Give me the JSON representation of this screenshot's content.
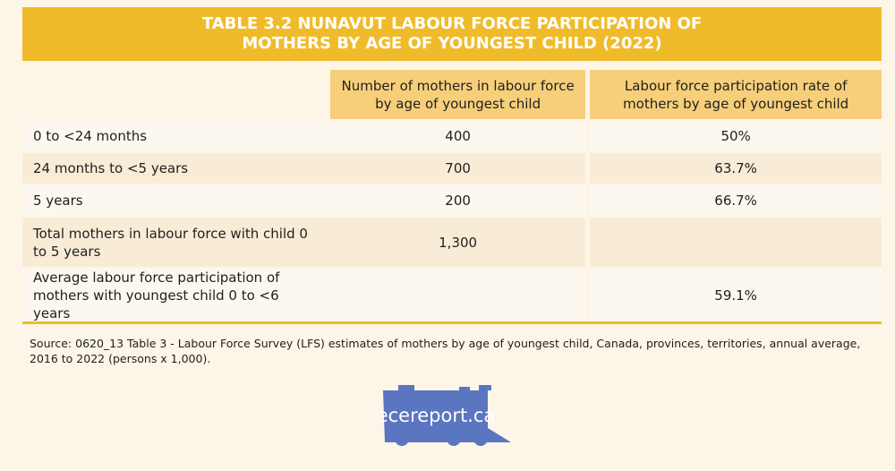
{
  "header": {
    "title": "TABLE 3.2 NUNAVUT LABOUR FORCE PARTICIPATION OF MOTHERS BY AGE OF YOUNGEST CHILD (2022)"
  },
  "table": {
    "columns": [
      "Number of mothers in labour force by age of youngest child",
      "Labour force participation rate of mothers by age of youngest child"
    ],
    "rows": [
      [
        "0 to <24 months",
        "400",
        "50%"
      ],
      [
        "24 months to <5 years",
        "700",
        "63.7%"
      ],
      [
        "5 years",
        "200",
        "66.7%"
      ],
      [
        "Total mothers in labour force with child 0 to 5 years",
        "1,300",
        null
      ],
      [
        "Average labour force participation of mothers with youngest child 0 to <6 years",
        null,
        "59.1%"
      ]
    ]
  },
  "source": "Source: 0620_13 Table 3 - Labour Force Survey (LFS) estimates of mothers by age of youngest child, Canada, provinces, territories, annual average, 2016 to 2022 (persons x 1,000).",
  "logo": "ecereport.ca"
}
